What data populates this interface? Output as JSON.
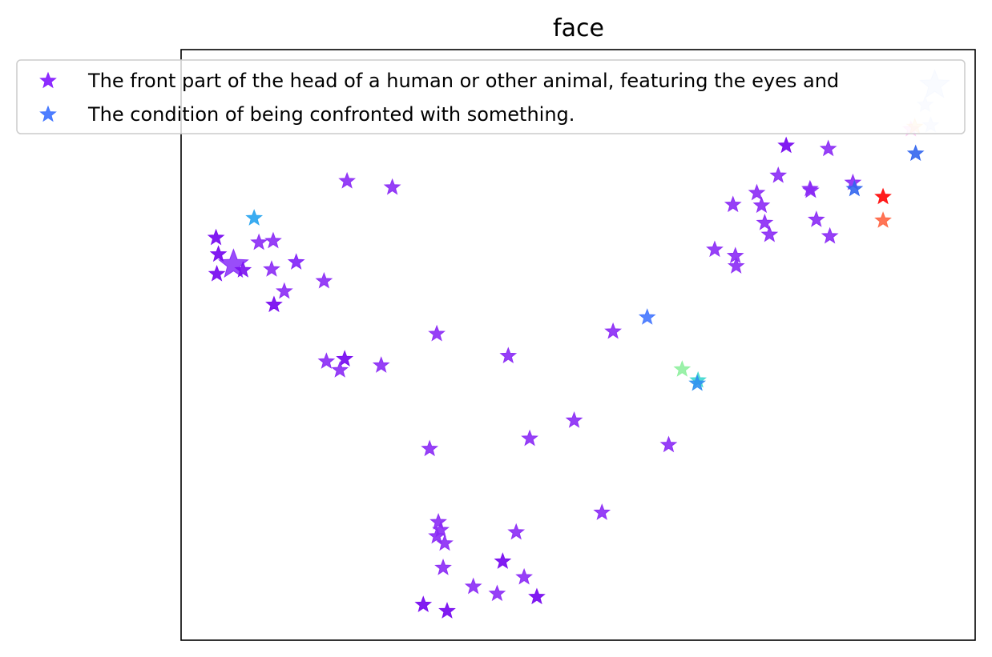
{
  "chart_data": {
    "type": "scatter",
    "title": "face",
    "xlabel": "",
    "ylabel": "",
    "x_ticks": "none",
    "y_ticks": "none",
    "grid": false,
    "marker": "star",
    "color_scale": "rainbow",
    "legend": {
      "placement": "top-left",
      "entries": [
        {
          "label": "The front part of the head of a human or other animal, featuring the eyes and",
          "color": "#8822ff"
        },
        {
          "label": "The condition of being confronted with something.",
          "color": "#4477ff"
        }
      ]
    },
    "xlim": [
      0,
      1000
    ],
    "ylim": [
      0,
      750
    ],
    "points": [
      {
        "x": 66,
        "y": 477,
        "size": "large",
        "color": "#8020f8",
        "alpha": 0.8
      },
      {
        "x": 44,
        "y": 511,
        "size": "normal",
        "color": "#7a10f0",
        "alpha": 0.95
      },
      {
        "x": 47,
        "y": 490,
        "size": "normal",
        "color": "#7a10f0",
        "alpha": 0.95
      },
      {
        "x": 45,
        "y": 465,
        "size": "normal",
        "color": "#7a10f0",
        "alpha": 0.95
      },
      {
        "x": 78,
        "y": 470,
        "size": "normal",
        "color": "#7a10f0",
        "alpha": 0.9
      },
      {
        "x": 92,
        "y": 536,
        "size": "normal",
        "color": "#30a8f0",
        "alpha": 0.95
      },
      {
        "x": 98,
        "y": 505,
        "size": "normal",
        "color": "#8b2bf5",
        "alpha": 0.9
      },
      {
        "x": 116,
        "y": 507,
        "size": "normal",
        "color": "#8b2bf5",
        "alpha": 0.9
      },
      {
        "x": 114,
        "y": 471,
        "size": "normal",
        "color": "#8b2bf5",
        "alpha": 0.9
      },
      {
        "x": 145,
        "y": 480,
        "size": "normal",
        "color": "#8020f8",
        "alpha": 0.9
      },
      {
        "x": 130,
        "y": 443,
        "size": "normal",
        "color": "#8b2bf5",
        "alpha": 0.9
      },
      {
        "x": 117,
        "y": 426,
        "size": "normal",
        "color": "#7a10f0",
        "alpha": 0.95
      },
      {
        "x": 180,
        "y": 456,
        "size": "normal",
        "color": "#8b2bf5",
        "alpha": 0.9
      },
      {
        "x": 209,
        "y": 583,
        "size": "normal",
        "color": "#8b2bf5",
        "alpha": 0.9
      },
      {
        "x": 266,
        "y": 575,
        "size": "normal",
        "color": "#8b2bf5",
        "alpha": 0.9
      },
      {
        "x": 183,
        "y": 354,
        "size": "normal",
        "color": "#8b2bf5",
        "alpha": 0.9
      },
      {
        "x": 206,
        "y": 357,
        "size": "normal",
        "color": "#7a10f0",
        "alpha": 0.95
      },
      {
        "x": 200,
        "y": 343,
        "size": "normal",
        "color": "#8b2bf5",
        "alpha": 0.9
      },
      {
        "x": 252,
        "y": 349,
        "size": "normal",
        "color": "#8b2bf5",
        "alpha": 0.9
      },
      {
        "x": 322,
        "y": 389,
        "size": "normal",
        "color": "#8b2bf5",
        "alpha": 0.9
      },
      {
        "x": 412,
        "y": 361,
        "size": "normal",
        "color": "#8b2bf5",
        "alpha": 0.9
      },
      {
        "x": 313,
        "y": 243,
        "size": "normal",
        "color": "#8b2bf5",
        "alpha": 0.9
      },
      {
        "x": 439,
        "y": 256,
        "size": "normal",
        "color": "#8b2bf5",
        "alpha": 0.9
      },
      {
        "x": 495,
        "y": 279,
        "size": "normal",
        "color": "#8b2bf5",
        "alpha": 0.9
      },
      {
        "x": 614,
        "y": 248,
        "size": "normal",
        "color": "#8b2bf5",
        "alpha": 0.9
      },
      {
        "x": 544,
        "y": 392,
        "size": "normal",
        "color": "#8b2bf5",
        "alpha": 0.9
      },
      {
        "x": 587,
        "y": 410,
        "size": "normal",
        "color": "#4477ff",
        "alpha": 0.9
      },
      {
        "x": 631,
        "y": 344,
        "size": "normal",
        "color": "#90f0a0",
        "alpha": 0.9
      },
      {
        "x": 651,
        "y": 330,
        "size": "normal",
        "color": "#40d8d0",
        "alpha": 0.9
      },
      {
        "x": 650,
        "y": 326,
        "size": "normal",
        "color": "#3090f0",
        "alpha": 0.9
      },
      {
        "x": 530,
        "y": 162,
        "size": "normal",
        "color": "#8b2bf5",
        "alpha": 0.9
      },
      {
        "x": 327,
        "y": 140,
        "size": "normal",
        "color": "#8b2bf5",
        "alpha": 0.9
      },
      {
        "x": 324,
        "y": 150,
        "size": "normal",
        "color": "#8b2bf5",
        "alpha": 0.9
      },
      {
        "x": 322,
        "y": 132,
        "size": "normal",
        "color": "#8b2bf5",
        "alpha": 0.9
      },
      {
        "x": 332,
        "y": 123,
        "size": "normal",
        "color": "#8b2bf5",
        "alpha": 0.9
      },
      {
        "x": 330,
        "y": 92,
        "size": "normal",
        "color": "#8b2bf5",
        "alpha": 0.9
      },
      {
        "x": 422,
        "y": 137,
        "size": "normal",
        "color": "#8b2bf5",
        "alpha": 0.9
      },
      {
        "x": 405,
        "y": 100,
        "size": "normal",
        "color": "#7a10f0",
        "alpha": 0.95
      },
      {
        "x": 432,
        "y": 80,
        "size": "normal",
        "color": "#8b2bf5",
        "alpha": 0.9
      },
      {
        "x": 448,
        "y": 55,
        "size": "normal",
        "color": "#7a10f0",
        "alpha": 0.95
      },
      {
        "x": 398,
        "y": 59,
        "size": "normal",
        "color": "#8b2bf5",
        "alpha": 0.9
      },
      {
        "x": 368,
        "y": 68,
        "size": "normal",
        "color": "#8b2bf5",
        "alpha": 0.9
      },
      {
        "x": 305,
        "y": 45,
        "size": "normal",
        "color": "#7a10f0",
        "alpha": 0.95
      },
      {
        "x": 335,
        "y": 37,
        "size": "normal",
        "color": "#7a10f0",
        "alpha": 0.95
      },
      {
        "x": 672,
        "y": 496,
        "size": "normal",
        "color": "#8b2bf5",
        "alpha": 0.9
      },
      {
        "x": 698,
        "y": 488,
        "size": "normal",
        "color": "#8b2bf5",
        "alpha": 0.9
      },
      {
        "x": 699,
        "y": 475,
        "size": "normal",
        "color": "#8b2bf5",
        "alpha": 0.9
      },
      {
        "x": 695,
        "y": 553,
        "size": "normal",
        "color": "#8b2bf5",
        "alpha": 0.9
      },
      {
        "x": 725,
        "y": 568,
        "size": "normal",
        "color": "#8b2bf5",
        "alpha": 0.9
      },
      {
        "x": 731,
        "y": 552,
        "size": "normal",
        "color": "#8b2bf5",
        "alpha": 0.9
      },
      {
        "x": 735,
        "y": 530,
        "size": "normal",
        "color": "#8b2bf5",
        "alpha": 0.9
      },
      {
        "x": 741,
        "y": 515,
        "size": "normal",
        "color": "#8b2bf5",
        "alpha": 0.9
      },
      {
        "x": 752,
        "y": 590,
        "size": "normal",
        "color": "#8b2bf5",
        "alpha": 0.9
      },
      {
        "x": 793,
        "y": 571,
        "size": "normal",
        "color": "#8b2bf5",
        "alpha": 0.9
      },
      {
        "x": 762,
        "y": 628,
        "size": "normal",
        "color": "#7a10f0",
        "alpha": 0.95
      },
      {
        "x": 815,
        "y": 624,
        "size": "normal",
        "color": "#8b2bf5",
        "alpha": 0.9
      },
      {
        "x": 792,
        "y": 573,
        "size": "normal",
        "color": "#8b2bf5",
        "alpha": 0.9
      },
      {
        "x": 817,
        "y": 513,
        "size": "normal",
        "color": "#8b2bf5",
        "alpha": 0.9
      },
      {
        "x": 800,
        "y": 534,
        "size": "normal",
        "color": "#8b2bf5",
        "alpha": 0.9
      },
      {
        "x": 846,
        "y": 581,
        "size": "normal",
        "color": "#8b2bf5",
        "alpha": 0.9
      },
      {
        "x": 848,
        "y": 573,
        "size": "normal",
        "color": "#3366ee",
        "alpha": 0.9
      },
      {
        "x": 884,
        "y": 563,
        "size": "normal",
        "color": "#ff1111",
        "alpha": 0.95
      },
      {
        "x": 884,
        "y": 533,
        "size": "normal",
        "color": "#ff6644",
        "alpha": 0.9
      },
      {
        "x": 925,
        "y": 618,
        "size": "normal",
        "color": "#3366ee",
        "alpha": 0.9
      },
      {
        "x": 919,
        "y": 649,
        "size": "normal",
        "color": "#ffaaee",
        "alpha": 0.45
      },
      {
        "x": 924,
        "y": 652,
        "size": "normal",
        "color": "#ffcc88",
        "alpha": 0.45
      },
      {
        "x": 944,
        "y": 654,
        "size": "normal",
        "color": "#c8d8ff",
        "alpha": 0.5
      },
      {
        "x": 937,
        "y": 680,
        "size": "normal",
        "color": "#c8d8ff",
        "alpha": 0.5
      },
      {
        "x": 949,
        "y": 705,
        "size": "large",
        "color": "#aac4ff",
        "alpha": 0.35
      }
    ]
  }
}
